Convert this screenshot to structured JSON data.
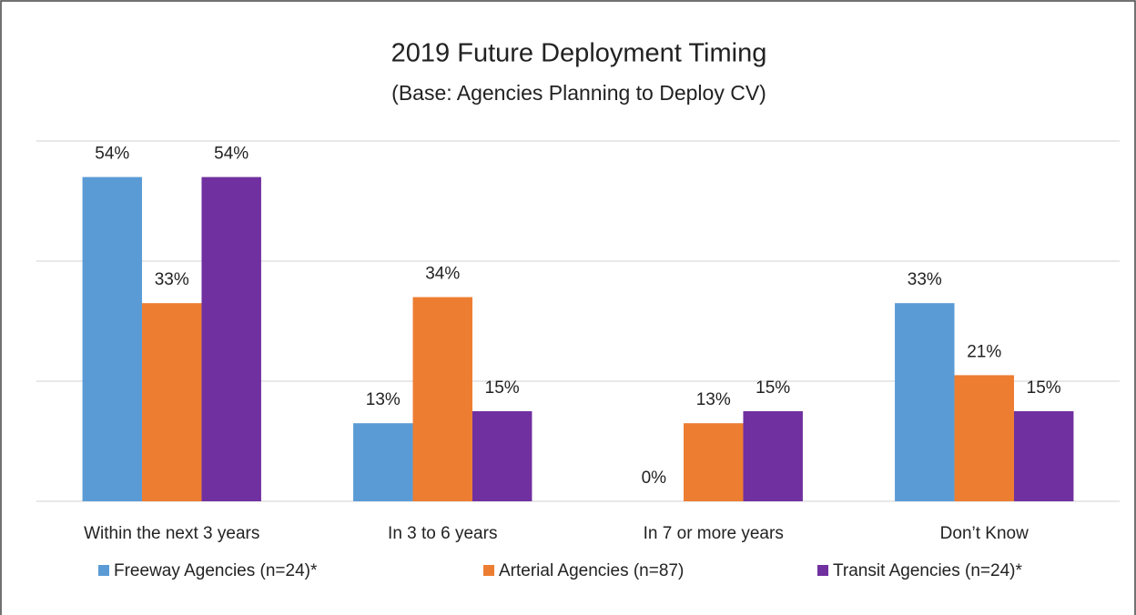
{
  "chart_data": {
    "type": "bar",
    "title": "2019 Future Deployment Timing",
    "subtitle": "(Base: Agencies Planning to Deploy CV)",
    "categories": [
      "Within the next 3 years",
      "In 3 to 6 years",
      "In 7 or more years",
      "Don’t Know"
    ],
    "series": [
      {
        "name": "Freeway Agencies (n=24)*",
        "color": "#5b9bd5",
        "values": [
          54,
          13,
          0,
          33
        ],
        "value_labels": [
          "54%",
          "13%",
          "0%",
          "33%"
        ]
      },
      {
        "name": "Arterial Agencies (n=87)",
        "color": "#ed7d31",
        "values": [
          33,
          34,
          13,
          21
        ],
        "value_labels": [
          "33%",
          "34%",
          "13%",
          "21%"
        ]
      },
      {
        "name": "Transit Agencies (n=24)*",
        "color": "#7030a0",
        "values": [
          54,
          15,
          15,
          15
        ],
        "value_labels": [
          "54%",
          "15%",
          "15%",
          "15%"
        ]
      }
    ],
    "ylim": [
      0,
      60
    ],
    "yticks": [
      0,
      20,
      40,
      60
    ],
    "grid": true,
    "legend": "bottom"
  }
}
